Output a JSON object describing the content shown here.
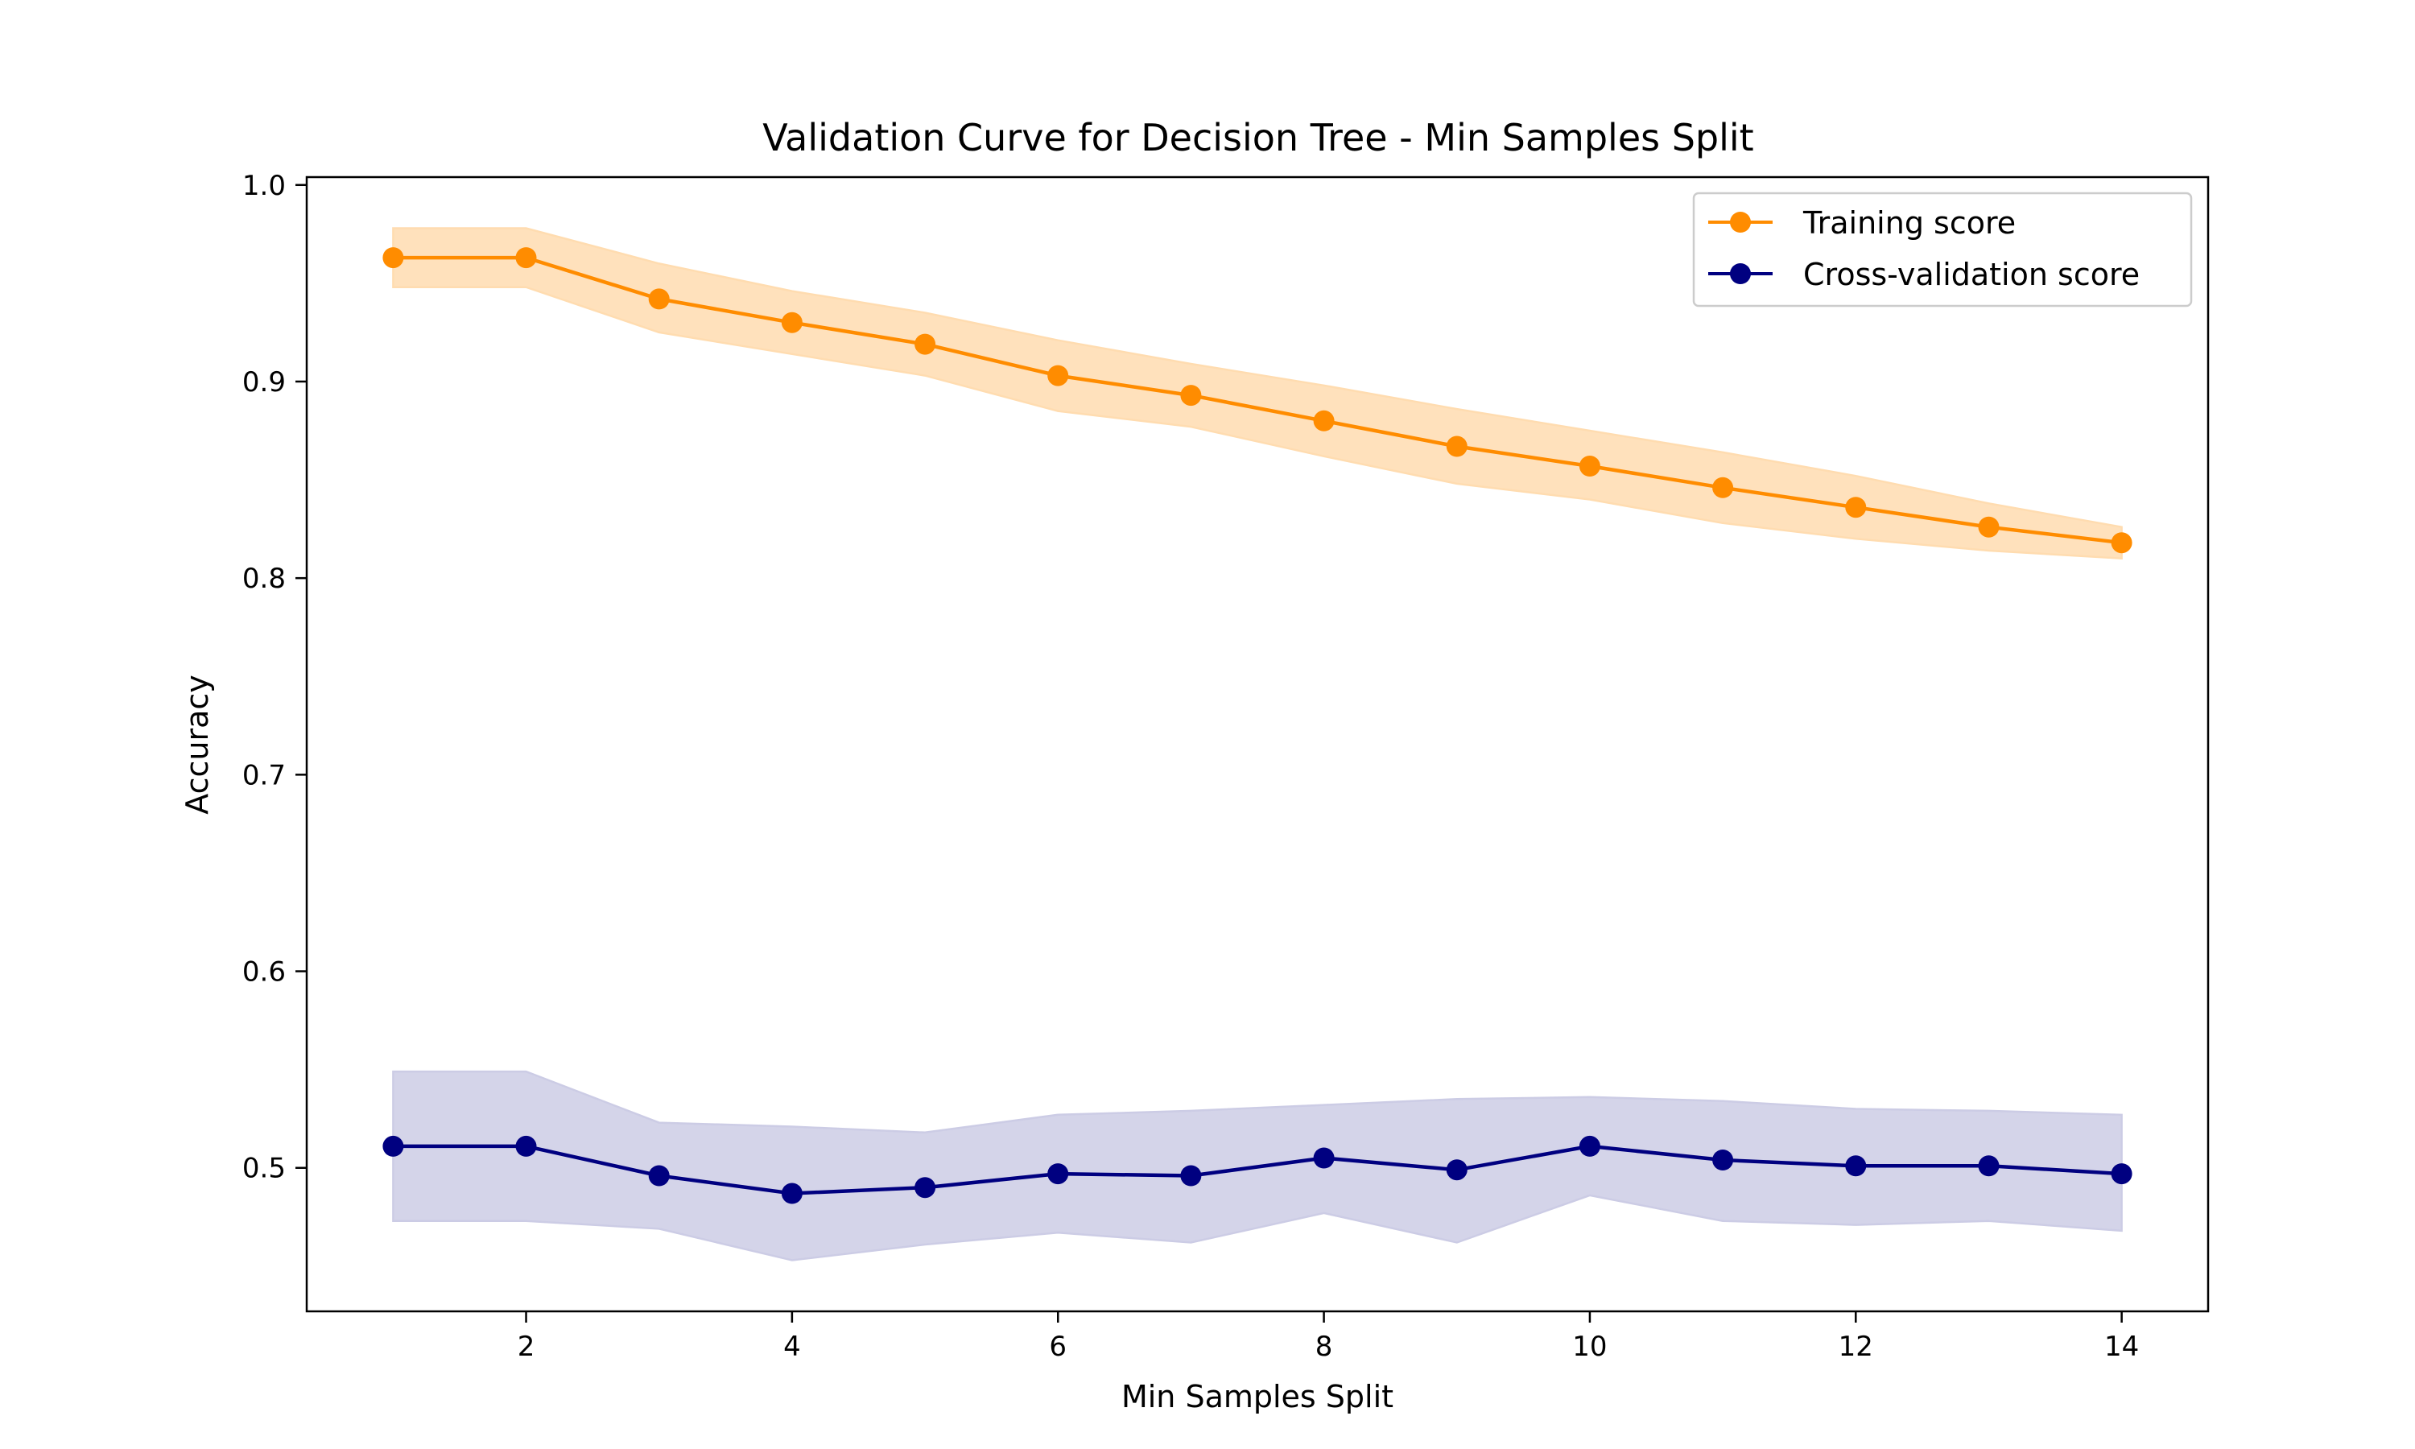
{
  "chart_data": {
    "type": "line",
    "title": "Validation Curve for Decision Tree - Min Samples Split",
    "xlabel": "Min Samples Split",
    "ylabel": "Accuracy",
    "xlim": [
      0.35,
      14.65
    ],
    "ylim": [
      0.427,
      1.004
    ],
    "xticks": [
      2,
      4,
      6,
      8,
      10,
      12,
      14
    ],
    "yticks": [
      0.5,
      0.6,
      0.7,
      0.8,
      0.9,
      1.0
    ],
    "ytick_labels": [
      "0.5",
      "0.6",
      "0.7",
      "0.8",
      "0.9",
      "1.0"
    ],
    "grid": false,
    "legend_position": "top-right",
    "x": [
      1,
      2,
      3,
      4,
      5,
      6,
      7,
      8,
      9,
      10,
      11,
      12,
      13,
      14
    ],
    "series": [
      {
        "name": "Training score",
        "color": "#ff8c00",
        "band_color": "#ffdcb0",
        "values": [
          0.963,
          0.963,
          0.942,
          0.93,
          0.919,
          0.903,
          0.893,
          0.88,
          0.867,
          0.857,
          0.846,
          0.836,
          0.826,
          0.818
        ],
        "band_upper": [
          0.978,
          0.978,
          0.96,
          0.946,
          0.935,
          0.921,
          0.909,
          0.898,
          0.886,
          0.875,
          0.864,
          0.852,
          0.838,
          0.826
        ],
        "band_lower": [
          0.948,
          0.948,
          0.925,
          0.914,
          0.903,
          0.885,
          0.877,
          0.862,
          0.848,
          0.84,
          0.828,
          0.82,
          0.814,
          0.81
        ]
      },
      {
        "name": "Cross-validation score",
        "color": "#000080",
        "band_color": "#cccce5",
        "values": [
          0.511,
          0.511,
          0.496,
          0.487,
          0.49,
          0.497,
          0.496,
          0.505,
          0.499,
          0.511,
          0.504,
          0.501,
          0.501,
          0.497
        ],
        "band_upper": [
          0.549,
          0.549,
          0.523,
          0.521,
          0.518,
          0.527,
          0.529,
          0.532,
          0.535,
          0.536,
          0.534,
          0.53,
          0.529,
          0.527
        ],
        "band_lower": [
          0.473,
          0.473,
          0.469,
          0.453,
          0.461,
          0.467,
          0.462,
          0.477,
          0.462,
          0.486,
          0.473,
          0.471,
          0.473,
          0.468
        ]
      }
    ]
  }
}
